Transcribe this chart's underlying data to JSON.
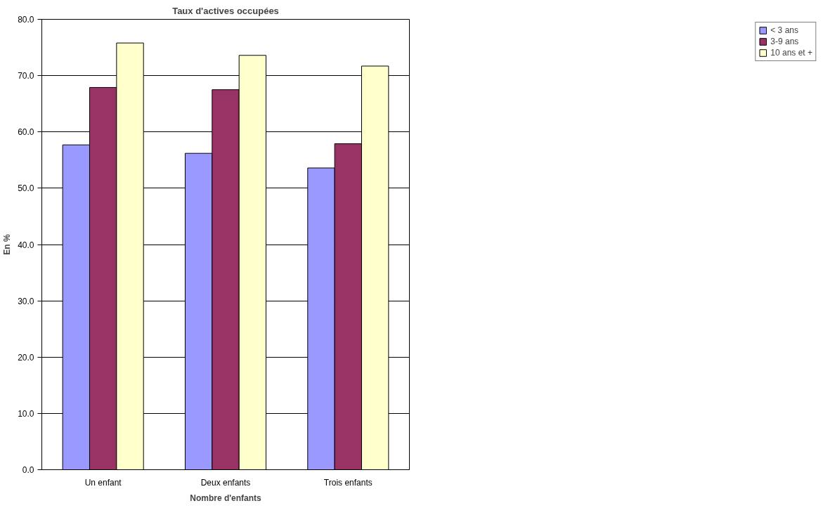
{
  "chart_data": {
    "type": "bar",
    "title": "Taux d'actives occupées",
    "xlabel": "Nombre d'enfants",
    "ylabel": "En %",
    "categories": [
      "Un enfant",
      "Deux enfants",
      "Trois enfants"
    ],
    "series": [
      {
        "name": "< 3 ans",
        "color": "#9999ff",
        "values": [
          57.7,
          56.2,
          53.6
        ]
      },
      {
        "name": "3-9 ans",
        "color": "#993366",
        "values": [
          67.9,
          67.5,
          57.9
        ]
      },
      {
        "name": "10 ans et +",
        "color": "#ffffcc",
        "values": [
          75.8,
          73.6,
          71.7
        ]
      }
    ],
    "ylim": [
      0,
      80
    ],
    "yticks": [
      {
        "value": 0,
        "label": "0.0"
      },
      {
        "value": 10,
        "label": "10.0"
      },
      {
        "value": 20,
        "label": "20.0"
      },
      {
        "value": 30,
        "label": "30.0"
      },
      {
        "value": 40,
        "label": "40.0"
      },
      {
        "value": 50,
        "label": "50.0"
      },
      {
        "value": 60,
        "label": "60.0"
      },
      {
        "value": 70,
        "label": "70.0"
      },
      {
        "value": 80,
        "label": "80.0"
      }
    ],
    "grid": "y",
    "legend": "right"
  }
}
